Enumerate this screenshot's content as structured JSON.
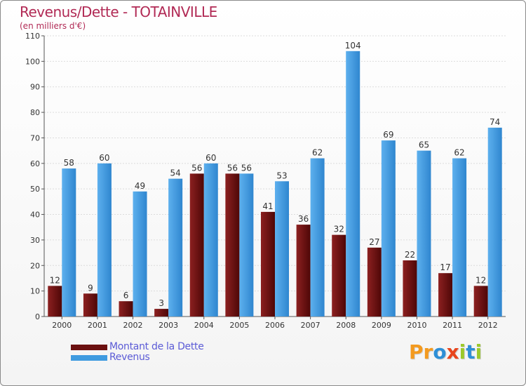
{
  "title": "Revenus/Dette - TOTAINVILLE",
  "subtitle": "(en milliers d'€)",
  "legend": {
    "debt_label": "Montant de la Dette",
    "revenue_label": "Revenus"
  },
  "logo": {
    "letters": [
      "P",
      "r",
      "o",
      "x",
      "i",
      "t",
      "i"
    ]
  },
  "colors": {
    "debt": "#6b1010",
    "revenue": "#3f9be0",
    "title": "#b12a55",
    "legend_text": "#5b5bd6",
    "logo": [
      "#f39a1f",
      "#f39a1f",
      "#2e8fd6",
      "#e8451d",
      "#9cc92b",
      "#2e8fd6",
      "#9cc92b"
    ]
  },
  "chart_data": {
    "type": "bar",
    "categories": [
      "2000",
      "2001",
      "2002",
      "2003",
      "2004",
      "2005",
      "2006",
      "2007",
      "2008",
      "2009",
      "2010",
      "2011",
      "2012"
    ],
    "series": [
      {
        "name": "Montant de la Dette",
        "values": [
          12,
          9,
          6,
          3,
          56,
          56,
          41,
          36,
          32,
          27,
          22,
          17,
          12
        ]
      },
      {
        "name": "Revenus",
        "values": [
          58,
          60,
          49,
          54,
          60,
          56,
          53,
          62,
          104,
          69,
          65,
          62,
          74
        ]
      }
    ],
    "ylim": [
      0,
      110
    ],
    "yticks": [
      0,
      10,
      20,
      30,
      40,
      50,
      60,
      70,
      80,
      90,
      100,
      110
    ],
    "grid": true,
    "legend_position": "bottom-left"
  }
}
